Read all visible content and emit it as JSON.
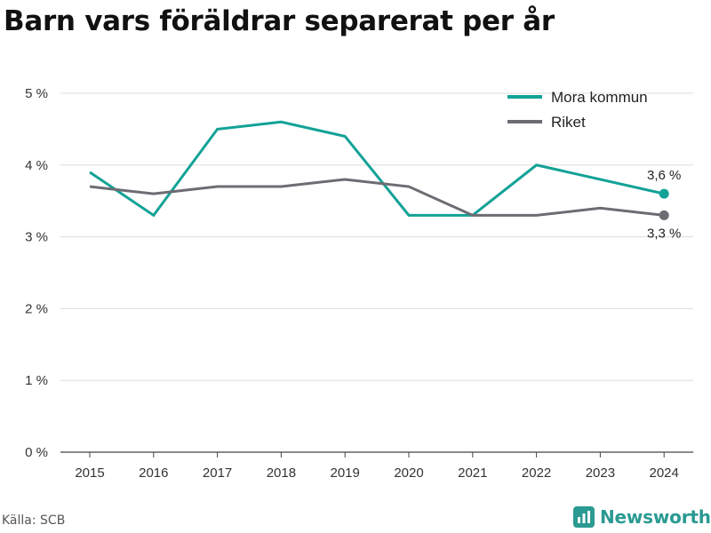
{
  "title": "Barn vars föräldrar separerat per år",
  "source": "Källa: SCB",
  "brand": {
    "name": "Newsworthy",
    "icon": "newsworthy-logo-icon",
    "color": "#2a9a92"
  },
  "chart_data": {
    "type": "line",
    "x": [
      "2015",
      "2016",
      "2017",
      "2018",
      "2019",
      "2020",
      "2021",
      "2022",
      "2023",
      "2024"
    ],
    "series": [
      {
        "name": "Mora kommun",
        "color": "#12a296",
        "values": [
          3.9,
          3.3,
          4.5,
          4.6,
          4.4,
          3.3,
          3.3,
          4.0,
          3.8,
          3.6
        ],
        "end_label": "3,6 %"
      },
      {
        "name": "Riket",
        "color": "#6d6c73",
        "values": [
          3.7,
          3.6,
          3.7,
          3.7,
          3.8,
          3.7,
          3.3,
          3.3,
          3.4,
          3.3
        ],
        "end_label": "3,3 %"
      }
    ],
    "yticks": [
      0,
      1,
      2,
      3,
      4,
      5
    ],
    "ytick_labels": [
      "0 %",
      "1 %",
      "2 %",
      "3 %",
      "4 %",
      "5 %"
    ],
    "ylim": [
      0,
      5
    ],
    "xlabel": "",
    "ylabel": "",
    "grid": true,
    "legend": "top-right"
  }
}
